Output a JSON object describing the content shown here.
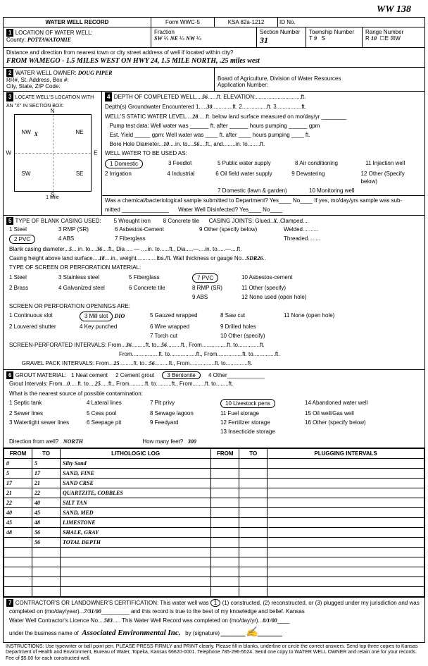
{
  "header": {
    "handwritten_id": "WW 138",
    "form_title": "WATER WELL RECORD",
    "form_num": "Form WWC-5",
    "ksa": "KSA 82a-1212",
    "id_label": "ID No."
  },
  "section1": {
    "title": "LOCATION OF WATER WELL:",
    "county_label": "County:",
    "county": "POTTAWATOMIE",
    "fraction_label": "Fraction",
    "frac1": "SW",
    "frac2": "NE",
    "frac3": "NW",
    "section_label": "Section Number",
    "section": "31",
    "township_label": "Township Number",
    "township_t": "T",
    "township": "9",
    "township_s": "S",
    "range_label": "Range Number",
    "range_r": "R",
    "range": "10",
    "range_ew": "☐E ☒W",
    "distance_label": "Distance and direction from nearest town or city street address of well if located within city?",
    "distance": "FROM WAMEGO - 1.5 MILES WEST ON HWY 24, 1.5 MILE NORTH, .25 miles west"
  },
  "section2": {
    "title": "WATER WELL OWNER:",
    "owner": "DOUG PIPER",
    "addr_label": "RR#, St. Address, Box #:",
    "city_label": "City, State, ZIP Code:",
    "board": "Board of Agriculture, Division of Water Resources",
    "app_label": "Application Number:"
  },
  "section3": {
    "title": "LOCATE WELL'S LOCATION WITH AN \"X\" IN SECTION BOX:",
    "nw": "NW",
    "ne": "NE",
    "sw": "SW",
    "se": "SE",
    "mile": "1 Mile"
  },
  "section4": {
    "title": "DEPTH OF COMPLETED WELL",
    "depth": "56",
    "depth_unit": "ft. ELEVATION:",
    "gw_label": "Depth(s) Groundwater Encountered",
    "gw1": "30",
    "static_label": "WELL'S STATIC WATER LEVEL",
    "static": "28",
    "static_unit": "ft. below land surface measured on mo/day/yr",
    "pump_label": "Pump test data: Well water was",
    "est_label": "Est. Yield",
    "bore_label": "Bore Hole Diameter",
    "bore1": "10",
    "bore_to": "56",
    "use_label": "WELL WATER TO BE USED AS:",
    "use1": "1 Domestic",
    "use2": "2 Irrigation",
    "use3": "3 Feedlot",
    "use4": "4 Industrial",
    "use5": "5 Public water supply",
    "use6": "6 Oil field water supply",
    "use7": "7 Domestic (lawn & garden)",
    "use8": "8 Air conditioning",
    "use9": "9 Dewatering",
    "use10": "10 Monitoring well",
    "use11": "11 Injection well",
    "use12": "12 Other (Specify below)",
    "chem_label": "Was a chemical/bacteriological sample submitted to Department? Yes",
    "chem_no": "No",
    "chem_q": "If yes, mo/day/yrs sample was sub-",
    "disinfect": "Water Well Disinfected? Yes",
    "disinfect_no": "No"
  },
  "section5": {
    "title": "TYPE OF BLANK CASING USED:",
    "c1": "1 Steel",
    "c2": "2 PVC",
    "c3": "3 RMP (SR)",
    "c4": "4 ABS",
    "c5": "5 Wrought iron",
    "c6": "6 Asbestos-Cement",
    "c7": "7 Fiberglass",
    "c8": "8 Concrete tile",
    "c9": "9 Other (specify below)",
    "joints": "CASING JOINTS: Glued",
    "joints_x": "X",
    "clamped": "Clamped",
    "welded": "Welded",
    "threaded": "Threaded",
    "blank_dia_label": "Blank casing diameter",
    "bd1": "5",
    "bd_to": "36",
    "height_label": "Casing height above land surface",
    "height": "18",
    "wall_label": "Wall thickness or gauge No.",
    "wall": "SDR26",
    "screen_title": "TYPE OF SCREEN OR PERFORATION MATERIAL:",
    "s1": "1 Steel",
    "s2": "2 Brass",
    "s3": "3 Stainless steel",
    "s4": "4 Galvanized steel",
    "s5": "5 Fiberglass",
    "s6": "6 Concrete tile",
    "s7": "7 PVC",
    "s8": "8 RMP (SR)",
    "s9": "9 ABS",
    "s10": "10 Asbestos-cement",
    "s11": "11 Other (specify)",
    "s12": "12 None used (open hole)",
    "open_title": "SCREEN OR PERFORATION OPENINGS ARE:",
    "o1": "1 Continuous slot",
    "o2": "2 Louvered shutter",
    "o3": "3 Mill slot",
    "o3b": "DIO",
    "o4": "4 Key punched",
    "o5": "5 Gauzed wrapped",
    "o6": "6 Wire wrapped",
    "o7": "7 Torch cut",
    "o8": "8 Saw cut",
    "o9": "9 Drilled holes",
    "o10": "10 Other (specify)",
    "o11": "11 None (open hole)",
    "perf_label": "SCREEN-PERFORATED INTERVALS:",
    "perf_from": "36",
    "perf_to": "56",
    "gravel_label": "GRAVEL PACK INTERVALS:",
    "gravel_from": "25",
    "gravel_to": "56"
  },
  "section6": {
    "title": "GROUT MATERIAL:",
    "g1": "1 Neat cement",
    "g2": "2 Cement grout",
    "g3": "3 Bentonite",
    "g4": "4 Other",
    "gi_label": "Grout Intervals:",
    "gi_from": "0",
    "gi_to": "25",
    "contam_label": "What is the nearest source of possible contamination:",
    "p1": "1 Septic tank",
    "p2": "2 Sewer lines",
    "p3": "3 Watertight sewer lines",
    "p4": "4 Lateral lines",
    "p5": "5 Cess pool",
    "p6": "6 Seepage pit",
    "p7": "7 Pit privy",
    "p8": "8 Sewage lagoon",
    "p9": "9 Feedyard",
    "p10": "10 Livestock pens",
    "p11": "11 Fuel storage",
    "p12": "12 Fertilizer storage",
    "p13": "13 Insecticide storage",
    "p14": "14 Abandoned water well",
    "p15": "15 Oil well/Gas well",
    "p16": "16 Other (specify below)",
    "dir_label": "Direction from well?",
    "dir": "NORTH",
    "feet_label": "How many feet?",
    "feet": "300"
  },
  "log": {
    "h_from": "FROM",
    "h_to": "TO",
    "h_lith": "LITHOLOGIC LOG",
    "h_plug": "PLUGGING INTERVALS",
    "rows": [
      {
        "from": "0",
        "to": "5",
        "lith": "Silty Sand"
      },
      {
        "from": "5",
        "to": "17",
        "lith": "SAND, FINE"
      },
      {
        "from": "17",
        "to": "21",
        "lith": "SAND CRSE"
      },
      {
        "from": "21",
        "to": "22",
        "lith": "QUARTZITE, COBBLES"
      },
      {
        "from": "22",
        "to": "40",
        "lith": "SILT TAN"
      },
      {
        "from": "40",
        "to": "45",
        "lith": "SAND, MED"
      },
      {
        "from": "45",
        "to": "48",
        "lith": "LIMESTONE"
      },
      {
        "from": "48",
        "to": "56",
        "lith": "SHALE, GRAY"
      },
      {
        "from": "",
        "to": "56",
        "lith": "TOTAL DEPTH"
      },
      {
        "from": "",
        "to": "",
        "lith": ""
      },
      {
        "from": "",
        "to": "",
        "lith": ""
      },
      {
        "from": "",
        "to": "",
        "lith": ""
      },
      {
        "from": "",
        "to": "",
        "lith": ""
      },
      {
        "from": "",
        "to": "",
        "lith": ""
      }
    ]
  },
  "section7": {
    "title": "CONTRACTOR'S OR LANDOWNER'S CERTIFICATION:",
    "cert1": "This water well was",
    "c1": "(1) constructed, (2) reconstructed, or (3) plugged under my jurisdiction and was",
    "date_label": "completed on (mo/day/year)",
    "date": "7/31/00",
    "cert2": "and this record is true to the best of my knowledge and belief. Kansas",
    "lic_label": "Water Well Contractor's Licence No.",
    "lic": "583",
    "comp_label": "This Water Well Record was completed on (mo/day/yr)",
    "comp": "8/1/00",
    "bus_label": "under the business name of",
    "bus": "Associated Environmental Inc.",
    "sig_label": "by (signature)"
  },
  "instructions": "INSTRUCTIONS: Use typewriter or ball point pen. PLEASE PRESS FIRMLY and PRINT clearly. Please fill in blanks, underline or circle the correct answers. Send top three copies to Kansas Department of Health and Environment, Bureau of Water, Topeka, Kansas 66620-0001. Telephone 785-296-5524. Send one copy to WATER WELL OWNER and retain one for your records. Fee of $5.00 for each constructed well."
}
